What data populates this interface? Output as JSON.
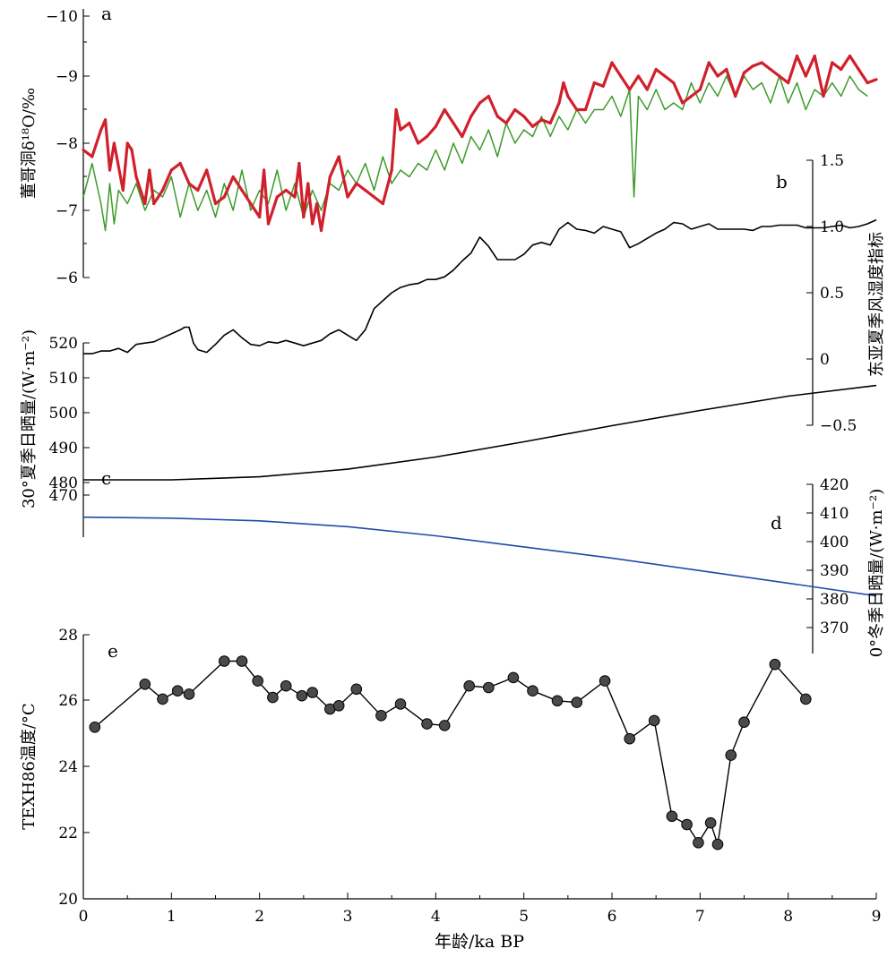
{
  "x_axis": {
    "label": "年龄/ka BP",
    "ticks": [
      "0",
      "1",
      "2",
      "3",
      "4",
      "5",
      "6",
      "7",
      "8",
      "9"
    ],
    "range": [
      0,
      9
    ]
  },
  "colors": {
    "a_series_1": "#d0202c",
    "a_series_2": "#3c9a2a",
    "b": "#000000",
    "c": "#000000",
    "d": "#1f4aa8",
    "e_point": "#4a4a4a"
  },
  "chart_data": [
    {
      "type": "line",
      "panel_label": "a",
      "ylabel": "董哥洞δ¹⁸O/‰",
      "y_reversed": true,
      "ylim": [
        -10,
        -6
      ],
      "yticks": [
        "−10",
        "−9",
        "−8",
        "−7",
        "−6"
      ],
      "series": [
        {
          "x": [
            0,
            0.1,
            0.2,
            0.25,
            0.3,
            0.35,
            0.45,
            0.5,
            0.55,
            0.6,
            0.7,
            0.75,
            0.8,
            0.9,
            1.0,
            1.1,
            1.2,
            1.3,
            1.4,
            1.5,
            1.6,
            1.7,
            1.8,
            1.9,
            2.0,
            2.05,
            2.1,
            2.2,
            2.3,
            2.4,
            2.45,
            2.5,
            2.55,
            2.6,
            2.65,
            2.7,
            2.8,
            2.9,
            3.0,
            3.1,
            3.2,
            3.3,
            3.4,
            3.5,
            3.55,
            3.6,
            3.7,
            3.8,
            3.9,
            4.0,
            4.1,
            4.2,
            4.3,
            4.4,
            4.5,
            4.6,
            4.7,
            4.8,
            4.9,
            5.0,
            5.1,
            5.2,
            5.3,
            5.4,
            5.45,
            5.5,
            5.6,
            5.7,
            5.8,
            5.9,
            6.0,
            6.1,
            6.2,
            6.3,
            6.4,
            6.5,
            6.6,
            6.7,
            6.8,
            6.9,
            7.0,
            7.1,
            7.2,
            7.3,
            7.4,
            7.5,
            7.6,
            7.7,
            7.8,
            7.9,
            8.0,
            8.1,
            8.2,
            8.3,
            8.4,
            8.5,
            8.6,
            8.7,
            8.8,
            8.9,
            9.0
          ],
          "y": [
            -7.9,
            -7.8,
            -8.2,
            -8.35,
            -7.6,
            -8.0,
            -7.3,
            -8.0,
            -7.9,
            -7.5,
            -7.1,
            -7.6,
            -7.1,
            -7.3,
            -7.6,
            -7.7,
            -7.4,
            -7.3,
            -7.6,
            -7.1,
            -7.2,
            -7.5,
            -7.3,
            -7.1,
            -6.9,
            -7.6,
            -6.8,
            -7.2,
            -7.3,
            -7.2,
            -7.7,
            -6.9,
            -7.4,
            -6.8,
            -7.1,
            -6.7,
            -7.5,
            -7.8,
            -7.2,
            -7.4,
            -7.3,
            -7.2,
            -7.1,
            -7.6,
            -8.5,
            -8.2,
            -8.3,
            -8.0,
            -8.1,
            -8.25,
            -8.5,
            -8.3,
            -8.1,
            -8.4,
            -8.6,
            -8.7,
            -8.4,
            -8.3,
            -8.5,
            -8.4,
            -8.25,
            -8.35,
            -8.3,
            -8.6,
            -8.9,
            -8.7,
            -8.5,
            -8.5,
            -8.9,
            -8.85,
            -9.2,
            -9.0,
            -8.8,
            -9.0,
            -8.8,
            -9.1,
            -9.0,
            -8.9,
            -8.6,
            -8.7,
            -8.8,
            -9.2,
            -9.0,
            -9.1,
            -8.7,
            -9.05,
            -9.15,
            -9.2,
            -9.1,
            -9.0,
            -8.9,
            -9.3,
            -9.0,
            -9.3,
            -8.7,
            -9.2,
            -9.1,
            -9.3,
            -9.1,
            -8.9,
            -8.95
          ]
        },
        {
          "x": [
            0,
            0.1,
            0.2,
            0.25,
            0.3,
            0.35,
            0.4,
            0.5,
            0.6,
            0.7,
            0.8,
            0.9,
            1.0,
            1.1,
            1.2,
            1.3,
            1.4,
            1.5,
            1.6,
            1.7,
            1.8,
            1.9,
            2.0,
            2.1,
            2.2,
            2.3,
            2.4,
            2.5,
            2.6,
            2.7,
            2.8,
            2.9,
            3.0,
            3.1,
            3.2,
            3.3,
            3.4,
            3.5,
            3.6,
            3.7,
            3.8,
            3.9,
            4.0,
            4.1,
            4.2,
            4.3,
            4.4,
            4.5,
            4.6,
            4.7,
            4.8,
            4.9,
            5.0,
            5.1,
            5.2,
            5.3,
            5.4,
            5.5,
            5.6,
            5.7,
            5.8,
            5.9,
            6.0,
            6.1,
            6.2,
            6.25,
            6.3,
            6.4,
            6.5,
            6.6,
            6.7,
            6.8,
            6.9,
            7.0,
            7.1,
            7.2,
            7.3,
            7.4,
            7.5,
            7.6,
            7.7,
            7.8,
            7.9,
            8.0,
            8.1,
            8.2,
            8.3,
            8.4,
            8.5,
            8.6,
            8.7,
            8.8,
            8.9
          ],
          "y": [
            -7.2,
            -7.7,
            -7.1,
            -6.7,
            -7.4,
            -6.8,
            -7.3,
            -7.1,
            -7.4,
            -7.0,
            -7.3,
            -7.2,
            -7.5,
            -6.9,
            -7.4,
            -7.0,
            -7.3,
            -6.9,
            -7.4,
            -7.0,
            -7.6,
            -7.0,
            -7.3,
            -7.1,
            -7.6,
            -7.0,
            -7.4,
            -6.9,
            -7.3,
            -7.0,
            -7.4,
            -7.3,
            -7.6,
            -7.4,
            -7.7,
            -7.3,
            -7.8,
            -7.4,
            -7.6,
            -7.5,
            -7.7,
            -7.6,
            -7.9,
            -7.6,
            -8.0,
            -7.7,
            -8.1,
            -7.9,
            -8.2,
            -7.8,
            -8.3,
            -8.0,
            -8.2,
            -8.1,
            -8.4,
            -8.1,
            -8.4,
            -8.2,
            -8.5,
            -8.3,
            -8.5,
            -8.5,
            -8.7,
            -8.4,
            -8.8,
            -7.2,
            -8.7,
            -8.5,
            -8.8,
            -8.5,
            -8.6,
            -8.5,
            -8.9,
            -8.6,
            -8.9,
            -8.7,
            -9.0,
            -8.7,
            -9.0,
            -8.8,
            -8.9,
            -8.6,
            -9.0,
            -8.6,
            -8.9,
            -8.5,
            -8.8,
            -8.7,
            -8.9,
            -8.7,
            -9.0,
            -8.8,
            -8.7
          ]
        }
      ]
    },
    {
      "type": "line",
      "panel_label": "b",
      "ylabel": "东亚夏季风湿度指标",
      "ylim": [
        -0.5,
        1.5
      ],
      "yticks": [
        "1.5",
        "1.0",
        "0.5",
        "0",
        "−0.5"
      ],
      "x": [
        0,
        0.1,
        0.2,
        0.3,
        0.4,
        0.5,
        0.6,
        0.7,
        0.8,
        0.9,
        1.0,
        1.1,
        1.15,
        1.2,
        1.25,
        1.3,
        1.4,
        1.5,
        1.6,
        1.7,
        1.8,
        1.9,
        2.0,
        2.1,
        2.2,
        2.3,
        2.4,
        2.5,
        2.6,
        2.7,
        2.8,
        2.9,
        3.0,
        3.1,
        3.2,
        3.3,
        3.4,
        3.5,
        3.6,
        3.7,
        3.8,
        3.9,
        4.0,
        4.1,
        4.2,
        4.3,
        4.4,
        4.5,
        4.6,
        4.7,
        4.8,
        4.9,
        5.0,
        5.1,
        5.2,
        5.3,
        5.4,
        5.5,
        5.6,
        5.7,
        5.8,
        5.9,
        6.0,
        6.1,
        6.2,
        6.3,
        6.4,
        6.5,
        6.6,
        6.7,
        6.8,
        6.9,
        7.0,
        7.1,
        7.2,
        7.3,
        7.4,
        7.5,
        7.6,
        7.7,
        7.8,
        7.9,
        8.0,
        8.1,
        8.2,
        8.3,
        8.4,
        8.5,
        8.6,
        8.7,
        8.8,
        8.9,
        9.0
      ],
      "y": [
        0.04,
        0.04,
        0.06,
        0.06,
        0.08,
        0.05,
        0.11,
        0.12,
        0.13,
        0.16,
        0.19,
        0.22,
        0.24,
        0.24,
        0.12,
        0.07,
        0.05,
        0.11,
        0.18,
        0.22,
        0.16,
        0.11,
        0.1,
        0.13,
        0.12,
        0.14,
        0.12,
        0.1,
        0.12,
        0.14,
        0.19,
        0.22,
        0.18,
        0.14,
        0.22,
        0.38,
        0.44,
        0.5,
        0.54,
        0.56,
        0.57,
        0.6,
        0.6,
        0.62,
        0.67,
        0.74,
        0.8,
        0.92,
        0.85,
        0.75,
        0.75,
        0.75,
        0.79,
        0.86,
        0.88,
        0.86,
        0.98,
        1.03,
        0.98,
        0.97,
        0.95,
        1.0,
        0.98,
        0.96,
        0.84,
        0.87,
        0.91,
        0.95,
        0.98,
        1.03,
        1.02,
        0.98,
        1.0,
        1.02,
        0.98,
        0.98,
        0.98,
        0.98,
        0.97,
        1.0,
        1.0,
        1.01,
        1.01,
        1.01,
        0.99,
        0.99,
        0.99,
        1.0,
        1.01,
        0.99,
        1.0,
        1.02,
        1.05
      ]
    },
    {
      "type": "line",
      "panel_label": "c",
      "ylabel": "30°夏季日晒量/(W·m⁻²)",
      "ylim": [
        470,
        520
      ],
      "yticks": [
        "520",
        "510",
        "500",
        "490",
        "480",
        "470"
      ],
      "x": [
        0,
        1,
        2,
        3,
        4,
        5,
        6,
        7,
        8,
        9
      ],
      "y": [
        475.0,
        475.0,
        476.0,
        478.5,
        482.5,
        487.5,
        492.8,
        497.8,
        502.5,
        506.0
      ]
    },
    {
      "type": "line",
      "panel_label": "d",
      "ylabel": "0°冬季日晒量/(W·m⁻²)",
      "ylim": [
        370,
        420
      ],
      "yticks": [
        "420",
        "410",
        "400",
        "390",
        "380",
        "370"
      ],
      "x": [
        0,
        1,
        2,
        3,
        4,
        5,
        6,
        7,
        8,
        9
      ],
      "y": [
        410.3,
        410.0,
        409.2,
        407.5,
        404.8,
        401.5,
        398.2,
        394.5,
        390.8,
        387.0
      ]
    },
    {
      "type": "scatter",
      "panel_label": "e",
      "ylabel": "TEXH86温度/°C",
      "ylim": [
        20,
        28
      ],
      "yticks": [
        "28",
        "26",
        "24",
        "22",
        "20"
      ],
      "x": [
        0.13,
        0.7,
        0.9,
        1.07,
        1.2,
        1.6,
        1.8,
        1.98,
        2.15,
        2.3,
        2.48,
        2.6,
        2.8,
        2.9,
        3.1,
        3.38,
        3.6,
        3.9,
        4.1,
        4.38,
        4.6,
        4.88,
        5.1,
        5.38,
        5.6,
        5.92,
        6.2,
        6.48,
        6.68,
        6.85,
        6.98,
        7.12,
        7.2,
        7.35,
        7.5,
        7.85,
        8.2
      ],
      "y": [
        25.2,
        26.5,
        26.05,
        26.3,
        26.2,
        27.2,
        27.2,
        26.6,
        26.1,
        26.45,
        26.15,
        26.25,
        25.75,
        25.85,
        26.35,
        25.55,
        25.9,
        25.3,
        25.25,
        26.45,
        26.4,
        26.7,
        26.3,
        26.0,
        25.95,
        26.6,
        24.85,
        25.4,
        22.5,
        22.25,
        21.7,
        22.3,
        21.65,
        24.35,
        25.35,
        27.1,
        26.05
      ]
    }
  ]
}
